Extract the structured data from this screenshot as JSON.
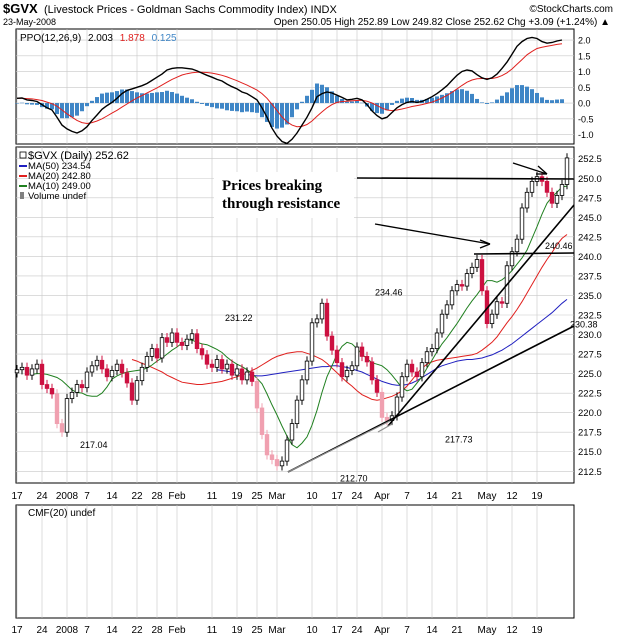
{
  "header": {
    "symbol": "$GVX",
    "description": "(Livestock Prices - Goldman Sachs Commodity Index) INDX",
    "date": "23-May-2008",
    "quote": "Open 250.05  High 252.89  Low 249.82  Close 252.62  Chg +3.09 (+1.24%) ▲",
    "watermark": "©StockCharts.com"
  },
  "colors": {
    "black": "#000000",
    "red": "#e0201e",
    "blue": "#2020c0",
    "green": "#208020",
    "grid": "#c8c8c8",
    "histogram": "#3f86c6",
    "down_candle": "#cc1040",
    "down_pink": "#f0a0b0",
    "up_candle": "#ffffff",
    "volume_gray": "#808080"
  },
  "ppo_panel": {
    "label_prefix": "PPO(12,26,9)",
    "ppo_value": "2.003",
    "signal_value": "1.878",
    "hist_value": "0.125",
    "ticks": [
      2.0,
      1.5,
      1.0,
      0.5,
      0.0,
      -0.5,
      -1.0
    ],
    "tick_labels": [
      "2.0",
      "1.5",
      "1.0",
      "0.5",
      "0.0",
      "-0.5",
      "-1.0"
    ]
  },
  "price_panel": {
    "legend": [
      {
        "text": "$GVX (Daily) 252.62",
        "color": "#000000"
      },
      {
        "text": "MA(50) 234.54",
        "color": "#2020c0"
      },
      {
        "text": "MA(20) 242.80",
        "color": "#e0201e"
      },
      {
        "text": "MA(10) 249.00",
        "color": "#208020"
      },
      {
        "text": "Volume undef",
        "color": "#808080"
      }
    ],
    "annotation_line1": "Prices breaking",
    "annotation_line2": "through resistance",
    "ticks": [
      252.5,
      250.0,
      247.5,
      245.0,
      242.5,
      240.0,
      237.5,
      235.0,
      232.5,
      230.0,
      227.5,
      225.0,
      222.5,
      220.0,
      217.5,
      215.0,
      212.5
    ],
    "tick_labels": [
      "252.5",
      "250.0",
      "247.5",
      "245.0",
      "242.5",
      "240.0",
      "237.5",
      "235.0",
      "232.5",
      "230.0",
      "227.5",
      "225.0",
      "222.5",
      "220.0",
      "217.5",
      "215.0",
      "212.5"
    ],
    "price_labels": [
      {
        "text": "217.04",
        "x": 15,
        "y": 217.04
      },
      {
        "text": "231.22",
        "x": 44,
        "y": 231.22
      },
      {
        "text": "234.46",
        "x": 74,
        "y": 234.46
      },
      {
        "text": "212.70",
        "x": 67,
        "y": 212.7
      },
      {
        "text": "217.73",
        "x": 88,
        "y": 217.73
      },
      {
        "text": "240.46",
        "x": 108,
        "y": 240.46
      },
      {
        "text": "230.38",
        "x": 113,
        "y": 230.38
      }
    ]
  },
  "cmf_panel": {
    "label": "CMF(20) undef"
  },
  "x_axis": {
    "labels": [
      {
        "text": "17",
        "i": 0
      },
      {
        "text": "24",
        "i": 5
      },
      {
        "text": "2008",
        "i": 10
      },
      {
        "text": "7",
        "i": 14
      },
      {
        "text": "14",
        "i": 19
      },
      {
        "text": "22",
        "i": 24
      },
      {
        "text": "28",
        "i": 28
      },
      {
        "text": "Feb",
        "i": 32
      },
      {
        "text": "11",
        "i": 39
      },
      {
        "text": "19",
        "i": 44
      },
      {
        "text": "25",
        "i": 48
      },
      {
        "text": "Mar",
        "i": 52
      },
      {
        "text": "10",
        "i": 59
      },
      {
        "text": "17",
        "i": 64
      },
      {
        "text": "24",
        "i": 68
      },
      {
        "text": "Apr",
        "i": 73
      },
      {
        "text": "7",
        "i": 78
      },
      {
        "text": "14",
        "i": 83
      },
      {
        "text": "21",
        "i": 88
      },
      {
        "text": "May",
        "i": 94
      },
      {
        "text": "12",
        "i": 99
      },
      {
        "text": "19",
        "i": 104
      }
    ]
  },
  "chart_data": {
    "type": "line",
    "title": "$GVX (Livestock Prices - Goldman Sachs Commodity Index) INDX",
    "x_index_range": [
      0,
      110
    ],
    "ylim": [
      211,
      254
    ],
    "close": [
      225.5,
      225.8,
      224.8,
      225.6,
      226.2,
      223.6,
      223.1,
      222.4,
      218.6,
      217.5,
      221.8,
      222.6,
      223.6,
      223.2,
      225.2,
      226.0,
      226.7,
      225.6,
      224.6,
      225.4,
      226.2,
      225.1,
      223.8,
      221.6,
      224.1,
      225.8,
      227.2,
      228.2,
      227.0,
      229.6,
      229.0,
      230.2,
      229.0,
      228.6,
      229.4,
      230.1,
      228.2,
      227.4,
      226.2,
      225.8,
      226.8,
      225.6,
      226.2,
      224.8,
      225.6,
      224.2,
      225.2,
      224.0,
      220.6,
      217.2,
      214.6,
      214.0,
      213.2,
      213.8,
      216.5,
      218.6,
      221.6,
      224.2,
      226.6,
      231.5,
      232.0,
      234.0,
      229.8,
      228.0,
      226.4,
      224.6,
      225.4,
      226.0,
      228.4,
      227.2,
      226.5,
      224.2,
      222.6,
      219.4,
      219.0,
      219.6,
      222.0,
      224.6,
      226.2,
      225.2,
      224.6,
      226.4,
      227.8,
      228.2,
      230.2,
      232.6,
      233.8,
      235.6,
      236.4,
      236.2,
      237.8,
      238.6,
      239.6,
      235.6,
      231.4,
      232.6,
      234.2,
      234.0,
      238.8,
      240.6,
      242.2,
      246.2,
      248.2,
      249.6,
      250.2,
      249.6,
      248.2,
      246.8,
      247.8,
      249.2,
      252.6
    ],
    "ma10": [
      224.9,
      225.0,
      225.0,
      224.9,
      224.7,
      224.5,
      224.1,
      223.5,
      222.9,
      222.6,
      222.5,
      222.2,
      222.1,
      222.1,
      222.5,
      223.3,
      224.3,
      224.7,
      225.0,
      225.2,
      225.3,
      225.4,
      225.5,
      225.7,
      226.1,
      226.6,
      227.0,
      227.5,
      228.0,
      228.4,
      228.9,
      229.3,
      229.3,
      229.0,
      228.8,
      228.7,
      228.4,
      228.1,
      227.7,
      227.1,
      226.6,
      226.2,
      225.9,
      225.5,
      225.0,
      224.4,
      223.7,
      222.4,
      221.0,
      219.7,
      218.3,
      217.0,
      215.9,
      215.5,
      216.1,
      216.9,
      218.4,
      220.3,
      222.6,
      224.6,
      226.0,
      227.5,
      228.5,
      229.0,
      228.8,
      228.2,
      227.5,
      226.9,
      226.4,
      226.2,
      226.0,
      225.5,
      224.8,
      224.0,
      223.2,
      222.8,
      223.0,
      223.8,
      224.6,
      225.7,
      226.7,
      227.8,
      228.8,
      229.6,
      230.5,
      231.4,
      232.4,
      233.4,
      234.3,
      235.1,
      236.0,
      236.9,
      236.9,
      236.7,
      237.0,
      237.5,
      238.2,
      239.0,
      239.8,
      240.8,
      242.3,
      243.8,
      245.4,
      246.8,
      247.6,
      248.2,
      248.9,
      249.0
    ],
    "ma20": [
      226.8,
      226.6,
      226.3,
      226.1,
      225.8,
      225.5,
      225.2,
      224.8,
      224.5,
      224.2,
      223.9,
      223.8,
      223.7,
      223.6,
      223.6,
      223.7,
      223.8,
      223.9,
      224.0,
      224.2,
      224.4,
      224.6,
      224.8,
      225.1,
      225.4,
      225.7,
      226.1,
      226.5,
      226.9,
      227.2,
      227.4,
      227.6,
      227.7,
      227.8,
      227.8,
      227.6,
      227.4,
      227.1,
      226.8,
      226.3,
      225.7,
      225.1,
      224.5,
      223.9,
      223.4,
      222.8,
      222.3,
      222.0,
      221.7,
      221.6,
      221.7,
      221.9,
      222.1,
      222.4,
      222.8,
      223.4,
      224.2,
      225.0,
      225.7,
      226.2,
      226.5,
      226.7,
      226.8,
      226.9,
      227.0,
      227.1,
      227.2,
      227.3,
      227.4,
      227.6,
      228.0,
      228.5,
      229.0,
      229.7,
      230.6,
      231.5,
      232.3,
      233.2,
      234.2,
      235.3,
      236.4,
      237.5,
      238.6,
      239.6,
      240.5,
      241.5,
      242.3,
      242.8
    ],
    "ma50": [
      225.5,
      225.4,
      225.3,
      225.2,
      225.1,
      225.0,
      224.9,
      224.8,
      224.7,
      224.7,
      224.8,
      224.9,
      225.0,
      225.1,
      225.2,
      225.3,
      225.4,
      225.5,
      225.6,
      225.7,
      225.8,
      225.9,
      225.9,
      226.0,
      226.0,
      225.9,
      225.8,
      225.6,
      225.4,
      225.2,
      224.9,
      224.6,
      224.3,
      224.0,
      223.8,
      223.6,
      223.5,
      223.5,
      223.6,
      223.8,
      224.1,
      224.5,
      224.9,
      225.3,
      225.7,
      226.0,
      226.2,
      226.4,
      226.6,
      226.7,
      226.8,
      226.8,
      226.9,
      227.0,
      227.2,
      227.4,
      227.7,
      228.0,
      228.4,
      228.8,
      229.3,
      229.8,
      230.3,
      230.8,
      231.3,
      231.8,
      232.3,
      232.8,
      233.4,
      234.0,
      234.5
    ],
    "ppo": [
      0.15,
      0.16,
      0.1,
      0.08,
      0.05,
      -0.05,
      -0.15,
      -0.22,
      -0.45,
      -0.7,
      -0.82,
      -0.9,
      -0.95,
      -0.88,
      -0.75,
      -0.55,
      -0.38,
      -0.2,
      -0.08,
      0.02,
      0.15,
      0.3,
      0.4,
      0.45,
      0.5,
      0.55,
      0.62,
      0.72,
      0.82,
      0.92,
      1.05,
      1.1,
      1.12,
      1.12,
      1.1,
      1.08,
      1.02,
      0.95,
      0.88,
      0.82,
      0.75,
      0.7,
      0.6,
      0.52,
      0.45,
      0.35,
      0.3,
      0.2,
      0.1,
      -0.15,
      -0.45,
      -0.8,
      -1.05,
      -1.22,
      -1.28,
      -1.15,
      -0.95,
      -0.7,
      -0.45,
      -0.15,
      0.2,
      0.3,
      0.35,
      0.32,
      0.25,
      0.18,
      0.1,
      0.12,
      0.15,
      0.1,
      -0.05,
      -0.25,
      -0.4,
      -0.5,
      -0.45,
      -0.3,
      -0.15,
      -0.05,
      0.02,
      0.05,
      0.02,
      0.05,
      0.12,
      0.2,
      0.3,
      0.42,
      0.55,
      0.72,
      0.88,
      1.0,
      1.05,
      1.02,
      0.9,
      0.8,
      0.75,
      0.8,
      0.92,
      1.1,
      1.3,
      1.55,
      1.8,
      1.95,
      2.05,
      2.08,
      2.05,
      1.95,
      1.9,
      1.92,
      1.97,
      2.0
    ],
    "signal": [
      0.15,
      0.15,
      0.14,
      0.13,
      0.11,
      0.08,
      0.03,
      -0.02,
      -0.1,
      -0.22,
      -0.34,
      -0.45,
      -0.55,
      -0.62,
      -0.65,
      -0.62,
      -0.57,
      -0.5,
      -0.41,
      -0.32,
      -0.23,
      -0.13,
      -0.03,
      0.07,
      0.16,
      0.24,
      0.32,
      0.4,
      0.48,
      0.57,
      0.66,
      0.75,
      0.82,
      0.89,
      0.93,
      0.96,
      0.98,
      0.98,
      0.97,
      0.95,
      0.92,
      0.88,
      0.83,
      0.77,
      0.71,
      0.64,
      0.57,
      0.49,
      0.41,
      0.3,
      0.15,
      -0.04,
      -0.24,
      -0.44,
      -0.6,
      -0.7,
      -0.75,
      -0.74,
      -0.68,
      -0.57,
      -0.42,
      -0.28,
      -0.15,
      -0.05,
      0.02,
      0.05,
      0.06,
      0.07,
      0.08,
      0.09,
      0.06,
      0.0,
      -0.08,
      -0.16,
      -0.22,
      -0.24,
      -0.22,
      -0.19,
      -0.15,
      -0.11,
      -0.08,
      -0.05,
      -0.01,
      0.03,
      0.09,
      0.16,
      0.24,
      0.34,
      0.45,
      0.56,
      0.66,
      0.73,
      0.77,
      0.78,
      0.78,
      0.78,
      0.81,
      0.87,
      0.96,
      1.08,
      1.23,
      1.38,
      1.53,
      1.64,
      1.73,
      1.77,
      1.8,
      1.83,
      1.86,
      1.88
    ]
  }
}
